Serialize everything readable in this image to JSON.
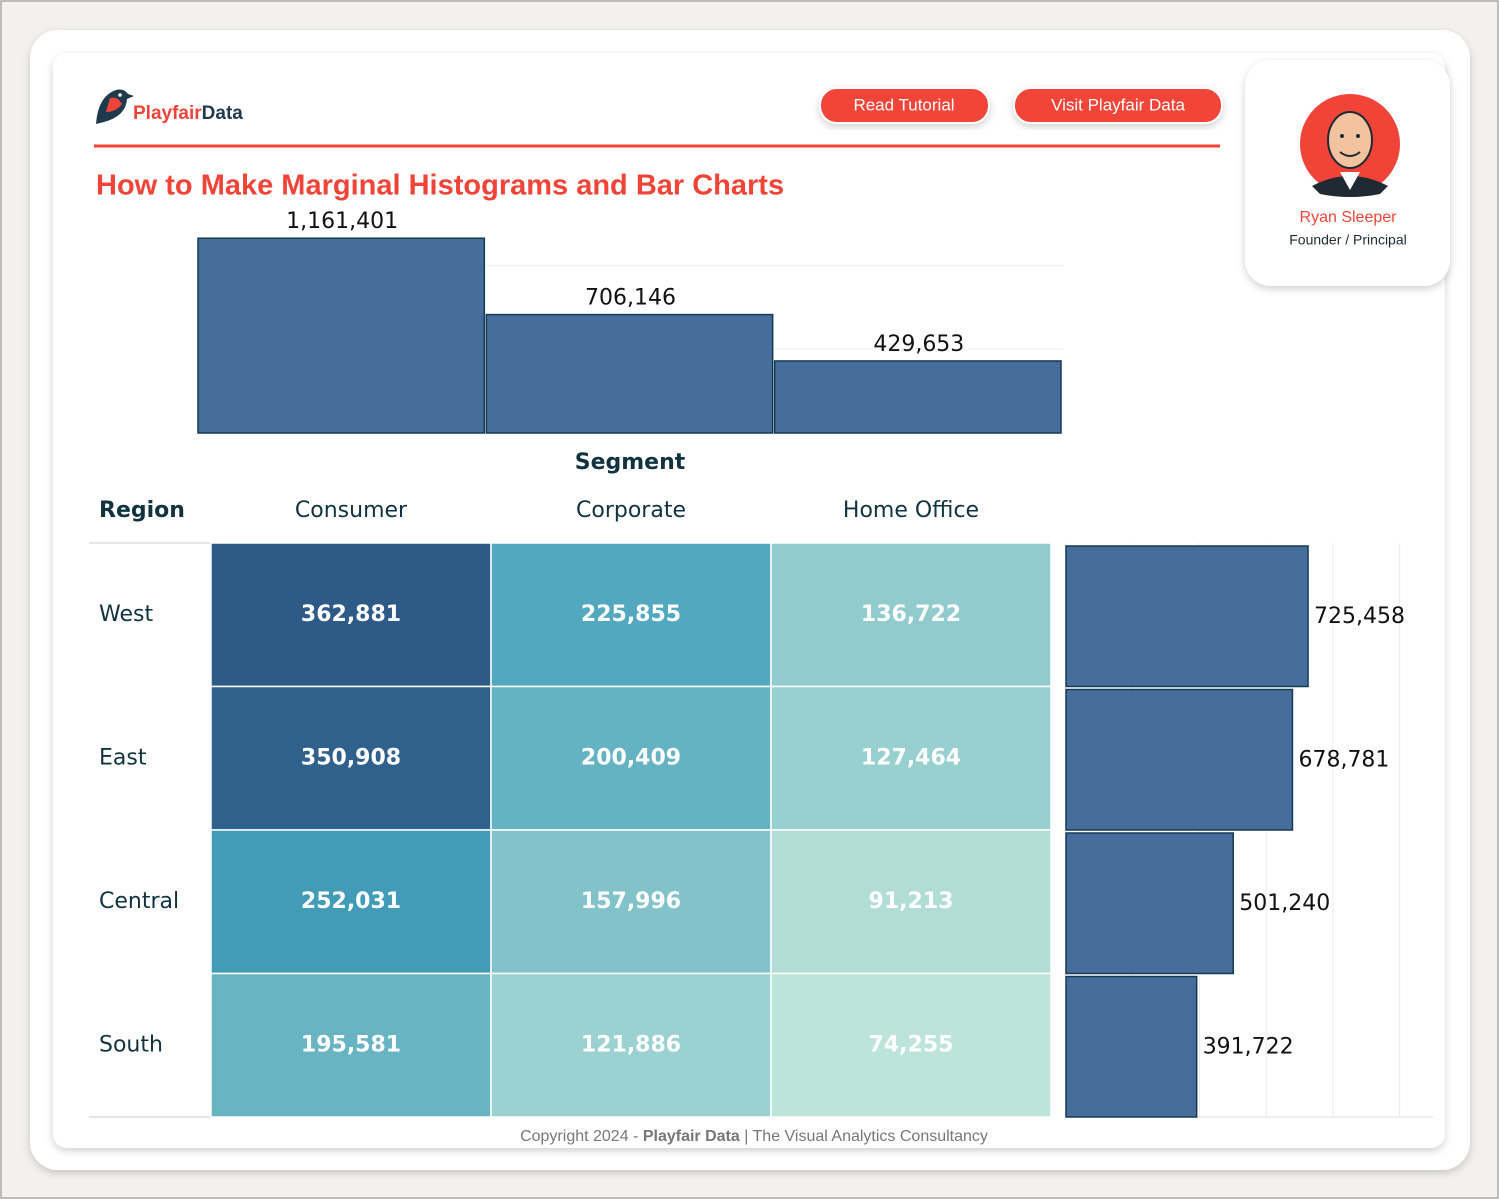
{
  "header": {
    "logo": [
      "Playfair",
      "Data"
    ],
    "buttons": [
      "Read Tutorial",
      "Visit Playfair Data"
    ],
    "title": "How to Make Marginal Histograms and Bar Charts"
  },
  "profile": {
    "name": "Ryan Sleeper",
    "role": "Founder / Principal"
  },
  "footer": {
    "copyright": "Copyright 2024 -",
    "brand": "Playfair Data",
    "tagline": "| The Visual Analytics Consultancy"
  },
  "chart_data": [
    {
      "type": "bar",
      "orientation": "vertical",
      "x_label": "Segment",
      "categories": [
        "Consumer",
        "Corporate",
        "Home Office"
      ],
      "values": [
        1161401,
        706146,
        429653
      ],
      "value_labels": [
        "1,161,401",
        "706,146",
        "429,653"
      ],
      "color": "#476d9c",
      "ylim": [
        0,
        1300000
      ],
      "yticks": [
        0,
        500000,
        1000000
      ],
      "grid": true
    },
    {
      "type": "heatmap",
      "row_header": "Region",
      "x_categories": [
        "Consumer",
        "Corporate",
        "Home Office"
      ],
      "y_categories": [
        "West",
        "East",
        "Central",
        "South"
      ],
      "values": [
        [
          362881,
          225855,
          136722
        ],
        [
          350908,
          200409,
          127464
        ],
        [
          252031,
          157996,
          91213
        ],
        [
          195581,
          121886,
          74255
        ]
      ],
      "value_labels": [
        [
          "362,881",
          "225,855",
          "136,722"
        ],
        [
          "350,908",
          "200,409",
          "127,464"
        ],
        [
          "252,031",
          "157,996",
          "91,213"
        ],
        [
          "195,581",
          "121,886",
          "74,255"
        ]
      ],
      "colors": [
        "#bde4d9",
        "#439fba",
        "#2e5a87"
      ]
    },
    {
      "type": "bar",
      "orientation": "horizontal",
      "categories": [
        "West",
        "East",
        "Central",
        "South"
      ],
      "values": [
        725458,
        678781,
        501240,
        391722
      ],
      "value_labels": [
        "725,458",
        "678,781",
        "501,240",
        "391,722"
      ],
      "color": "#476d9c",
      "xlim": [
        0,
        1100000
      ],
      "xticks": [
        0,
        200000,
        400000,
        600000,
        800000,
        1000000
      ],
      "grid": true
    }
  ]
}
